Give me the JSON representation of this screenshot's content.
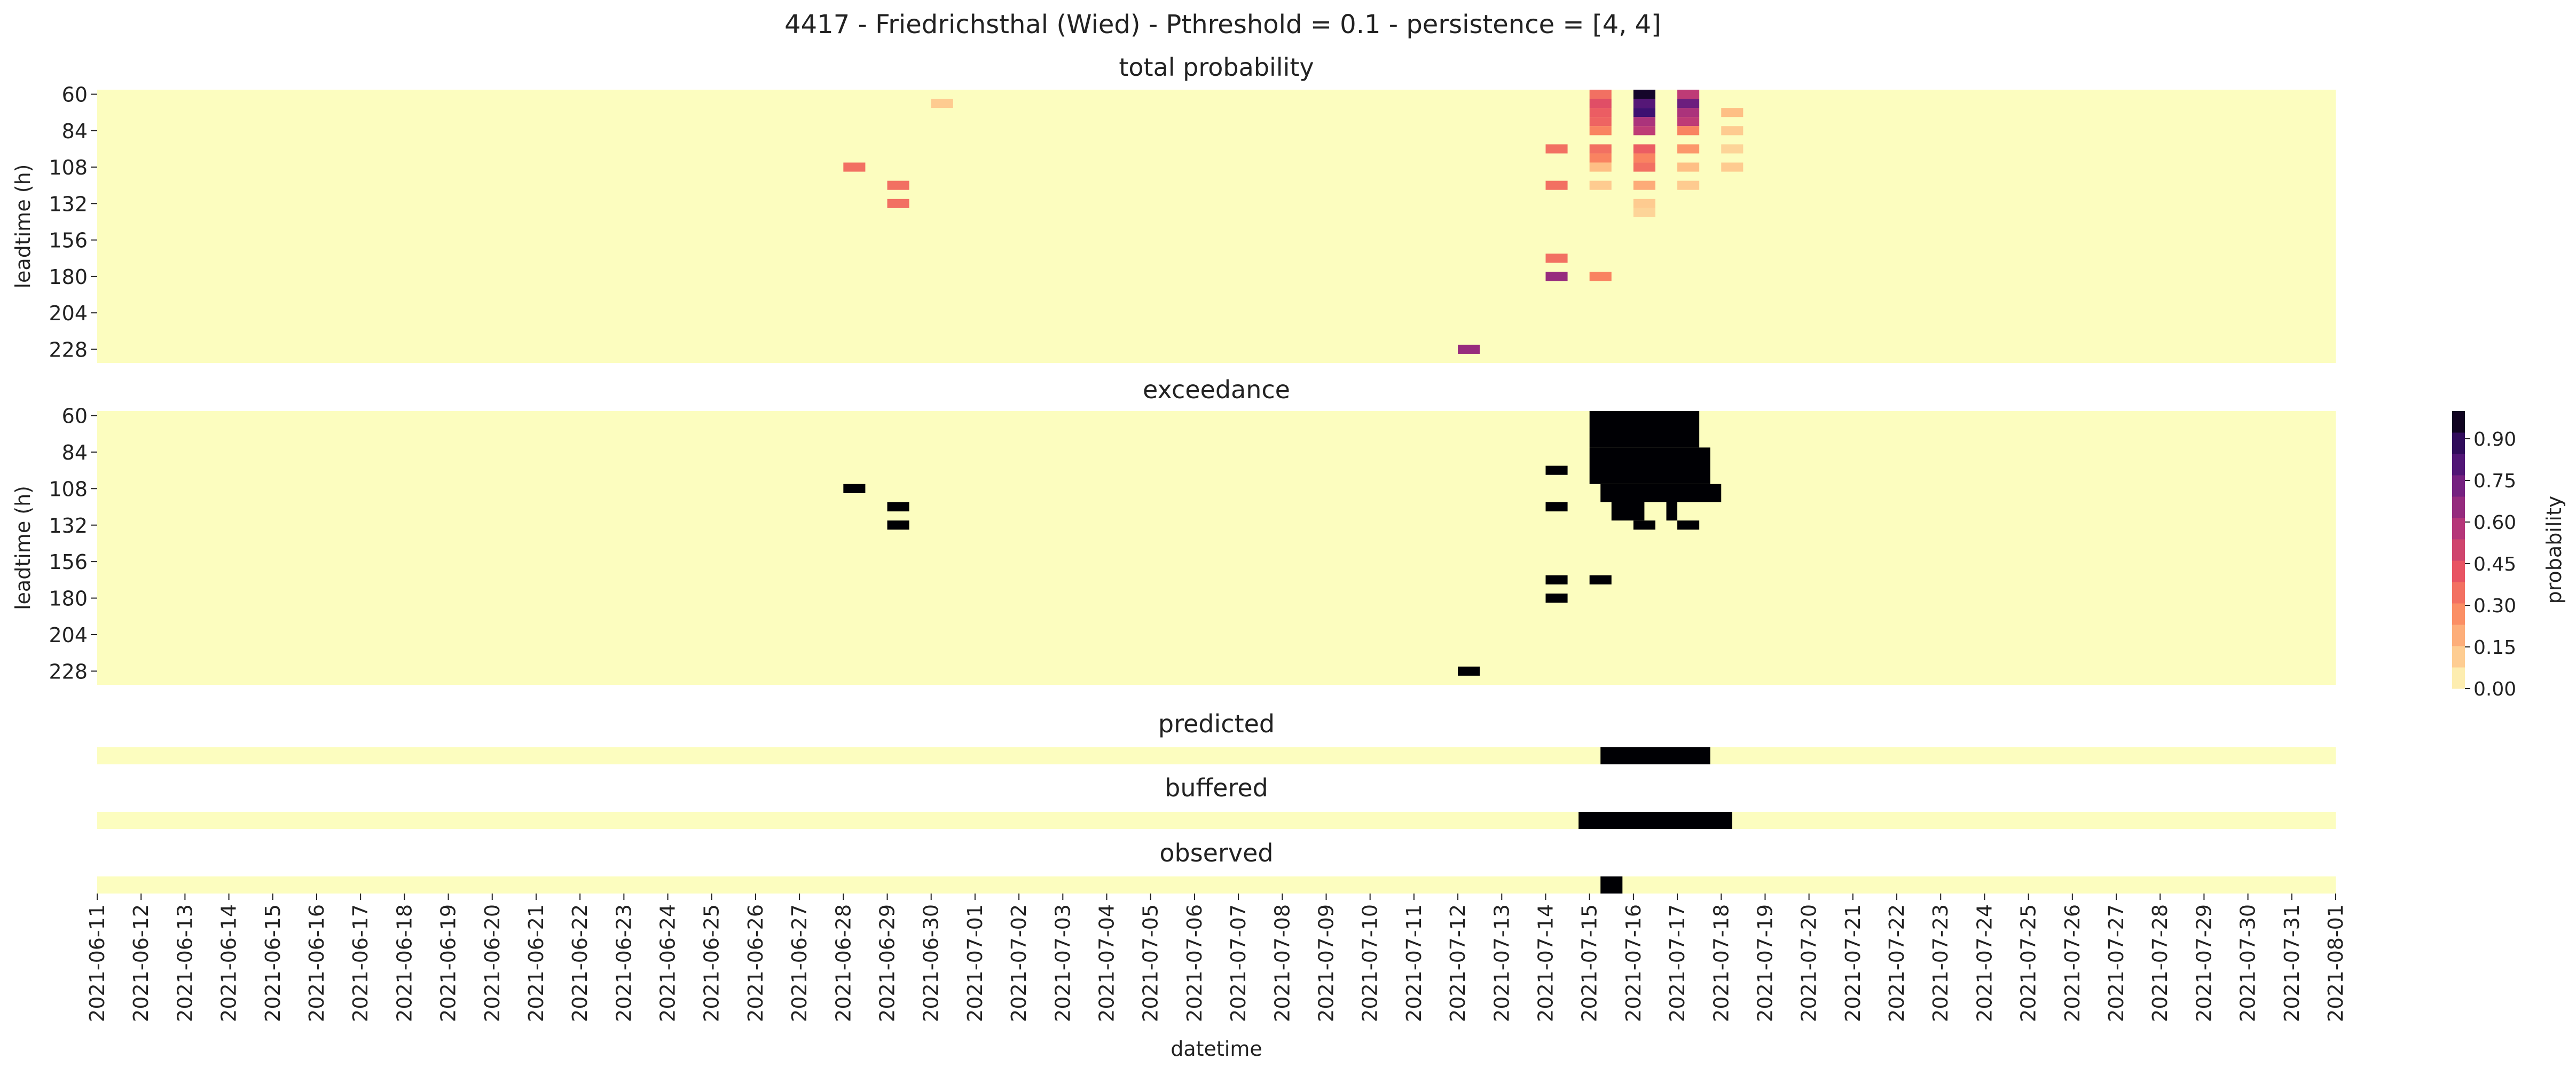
{
  "figure": {
    "suptitle": "4417 - Friedrichsthal (Wied) - Pthreshold = 0.1 - persistence = [4, 4]"
  },
  "colors": {
    "low": "#fcfdbf",
    "high": "#000004",
    "magma_stops": [
      "#fcfdbf",
      "#fec287",
      "#fb8861",
      "#e75263",
      "#b73779",
      "#7c2382",
      "#3b0f70",
      "#000004"
    ]
  },
  "chart_data": [
    {
      "name": "total-probability",
      "type": "heatmap",
      "title": "total probability",
      "xlabel": "",
      "ylabel": "leadtime (h)",
      "yticks": [
        "60",
        "84",
        "108",
        "132",
        "156",
        "180",
        "204",
        "228"
      ],
      "leadtime_range_h": [
        60,
        240
      ],
      "xlim": [
        "2021-06-11",
        "2021-08-01"
      ],
      "cells_default": 0.0,
      "cells": [
        {
          "date": "2021-07-15",
          "leadtime": 60,
          "value": 0.35
        },
        {
          "date": "2021-07-15",
          "leadtime": 66,
          "value": 0.45
        },
        {
          "date": "2021-07-15",
          "leadtime": 72,
          "value": 0.4
        },
        {
          "date": "2021-07-15",
          "leadtime": 78,
          "value": 0.38
        },
        {
          "date": "2021-07-15",
          "leadtime": 84,
          "value": 0.3
        },
        {
          "date": "2021-07-15",
          "leadtime": 96,
          "value": 0.35
        },
        {
          "date": "2021-07-15",
          "leadtime": 102,
          "value": 0.3
        },
        {
          "date": "2021-07-15",
          "leadtime": 108,
          "value": 0.15
        },
        {
          "date": "2021-07-15",
          "leadtime": 120,
          "value": 0.12
        },
        {
          "date": "2021-07-15",
          "leadtime": 180,
          "value": 0.3
        },
        {
          "date": "2021-07-16",
          "leadtime": 60,
          "value": 0.95
        },
        {
          "date": "2021-07-16",
          "leadtime": 66,
          "value": 0.8
        },
        {
          "date": "2021-07-16",
          "leadtime": 72,
          "value": 0.85
        },
        {
          "date": "2021-07-16",
          "leadtime": 78,
          "value": 0.6
        },
        {
          "date": "2021-07-16",
          "leadtime": 84,
          "value": 0.55
        },
        {
          "date": "2021-07-16",
          "leadtime": 96,
          "value": 0.4
        },
        {
          "date": "2021-07-16",
          "leadtime": 102,
          "value": 0.3
        },
        {
          "date": "2021-07-16",
          "leadtime": 108,
          "value": 0.35
        },
        {
          "date": "2021-07-16",
          "leadtime": 120,
          "value": 0.2
        },
        {
          "date": "2021-07-16",
          "leadtime": 132,
          "value": 0.12
        },
        {
          "date": "2021-07-16",
          "leadtime": 138,
          "value": 0.1
        },
        {
          "date": "2021-07-17",
          "leadtime": 60,
          "value": 0.55
        },
        {
          "date": "2021-07-17",
          "leadtime": 66,
          "value": 0.75
        },
        {
          "date": "2021-07-17",
          "leadtime": 72,
          "value": 0.6
        },
        {
          "date": "2021-07-17",
          "leadtime": 78,
          "value": 0.55
        },
        {
          "date": "2021-07-17",
          "leadtime": 84,
          "value": 0.3
        },
        {
          "date": "2021-07-17",
          "leadtime": 96,
          "value": 0.25
        },
        {
          "date": "2021-07-17",
          "leadtime": 108,
          "value": 0.15
        },
        {
          "date": "2021-07-17",
          "leadtime": 120,
          "value": 0.12
        },
        {
          "date": "2021-07-18",
          "leadtime": 72,
          "value": 0.15
        },
        {
          "date": "2021-07-18",
          "leadtime": 84,
          "value": 0.12
        },
        {
          "date": "2021-07-18",
          "leadtime": 96,
          "value": 0.1
        },
        {
          "date": "2021-07-18",
          "leadtime": 108,
          "value": 0.12
        },
        {
          "date": "2021-06-28",
          "leadtime": 108,
          "value": 0.35
        },
        {
          "date": "2021-06-29",
          "leadtime": 120,
          "value": 0.35
        },
        {
          "date": "2021-06-29",
          "leadtime": 132,
          "value": 0.35
        },
        {
          "date": "2021-06-30",
          "leadtime": 66,
          "value": 0.12
        },
        {
          "date": "2021-07-14",
          "leadtime": 96,
          "value": 0.35
        },
        {
          "date": "2021-07-14",
          "leadtime": 120,
          "value": 0.35
        },
        {
          "date": "2021-07-14",
          "leadtime": 168,
          "value": 0.35
        },
        {
          "date": "2021-07-14",
          "leadtime": 180,
          "value": 0.65
        },
        {
          "date": "2021-07-12",
          "leadtime": 228,
          "value": 0.65
        }
      ]
    },
    {
      "name": "exceedance",
      "type": "heatmap",
      "title": "exceedance",
      "xlabel": "",
      "ylabel": "leadtime (h)",
      "yticks": [
        "60",
        "84",
        "108",
        "132",
        "156",
        "180",
        "204",
        "228"
      ],
      "leadtime_range_h": [
        60,
        240
      ],
      "xlim": [
        "2021-06-11",
        "2021-08-01"
      ],
      "cells_default": 0,
      "rects": [
        {
          "date_start": "2021-07-15",
          "date_end": "2021-07-17.5",
          "leadtime_start": 60,
          "leadtime_end": 84,
          "value": 1
        },
        {
          "date_start": "2021-07-15",
          "date_end": "2021-07-17.75",
          "leadtime_start": 84,
          "leadtime_end": 108,
          "value": 1
        },
        {
          "date_start": "2021-07-15.25",
          "date_end": "2021-07-18",
          "leadtime_start": 108,
          "leadtime_end": 120,
          "value": 1
        },
        {
          "date_start": "2021-07-15.5",
          "date_end": "2021-07-16.25",
          "leadtime_start": 120,
          "leadtime_end": 132,
          "value": 1
        },
        {
          "date_start": "2021-07-16.75",
          "date_end": "2021-07-17",
          "leadtime_start": 120,
          "leadtime_end": 132,
          "value": 1
        }
      ],
      "cells": [
        {
          "date": "2021-06-28",
          "leadtime": 108,
          "value": 1
        },
        {
          "date": "2021-06-29",
          "leadtime": 120,
          "value": 1
        },
        {
          "date": "2021-06-29",
          "leadtime": 132,
          "value": 1
        },
        {
          "date": "2021-07-14",
          "leadtime": 96,
          "value": 1
        },
        {
          "date": "2021-07-14",
          "leadtime": 120,
          "value": 1
        },
        {
          "date": "2021-07-14",
          "leadtime": 168,
          "value": 1
        },
        {
          "date": "2021-07-14",
          "leadtime": 180,
          "value": 1
        },
        {
          "date": "2021-07-15",
          "leadtime": 168,
          "value": 1
        },
        {
          "date": "2021-07-16",
          "leadtime": 132,
          "value": 1
        },
        {
          "date": "2021-07-17",
          "leadtime": 132,
          "value": 1
        },
        {
          "date": "2021-07-12",
          "leadtime": 228,
          "value": 1
        }
      ]
    },
    {
      "name": "predicted",
      "type": "heatmap",
      "title": "predicted",
      "xlim": [
        "2021-06-11",
        "2021-08-01"
      ],
      "segments": [
        {
          "start": "2021-07-15.25",
          "end": "2021-07-17.75",
          "value": 1
        }
      ]
    },
    {
      "name": "buffered",
      "type": "heatmap",
      "title": "buffered",
      "xlim": [
        "2021-06-11",
        "2021-08-01"
      ],
      "segments": [
        {
          "start": "2021-07-14.75",
          "end": "2021-07-18.25",
          "value": 1
        }
      ]
    },
    {
      "name": "observed",
      "type": "heatmap",
      "title": "observed",
      "xlim": [
        "2021-06-11",
        "2021-08-01"
      ],
      "xlabel": "datetime",
      "segments": [
        {
          "start": "2021-07-15.25",
          "end": "2021-07-15.75",
          "value": 1
        }
      ],
      "xtick_labels": [
        "2021-06-11",
        "2021-06-12",
        "2021-06-13",
        "2021-06-14",
        "2021-06-15",
        "2021-06-16",
        "2021-06-17",
        "2021-06-18",
        "2021-06-19",
        "2021-06-20",
        "2021-06-21",
        "2021-06-22",
        "2021-06-23",
        "2021-06-24",
        "2021-06-25",
        "2021-06-26",
        "2021-06-27",
        "2021-06-28",
        "2021-06-29",
        "2021-06-30",
        "2021-07-01",
        "2021-07-02",
        "2021-07-03",
        "2021-07-04",
        "2021-07-05",
        "2021-07-06",
        "2021-07-07",
        "2021-07-08",
        "2021-07-09",
        "2021-07-10",
        "2021-07-11",
        "2021-07-12",
        "2021-07-13",
        "2021-07-14",
        "2021-07-15",
        "2021-07-16",
        "2021-07-17",
        "2021-07-18",
        "2021-07-19",
        "2021-07-20",
        "2021-07-21",
        "2021-07-22",
        "2021-07-23",
        "2021-07-24",
        "2021-07-25",
        "2021-07-26",
        "2021-07-27",
        "2021-07-28",
        "2021-07-29",
        "2021-07-30",
        "2021-07-31",
        "2021-08-01"
      ]
    }
  ],
  "colorbar": {
    "label": "probability",
    "ticks": [
      "0.00",
      "0.15",
      "0.30",
      "0.45",
      "0.60",
      "0.75",
      "0.90"
    ],
    "range": [
      0,
      1
    ],
    "levels": 13
  }
}
